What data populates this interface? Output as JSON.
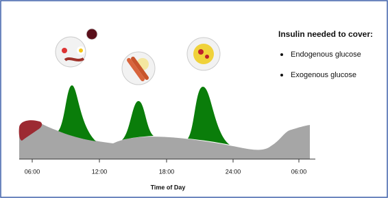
{
  "legend": {
    "title": "Insulin needed to cover:",
    "items": [
      "Endogenous glucose",
      "Exogenous glucose"
    ]
  },
  "axis": {
    "ticks": [
      "06:00",
      "12:00",
      "18:00",
      "24:00",
      "06:00"
    ],
    "label": "Time of Day"
  }
}
